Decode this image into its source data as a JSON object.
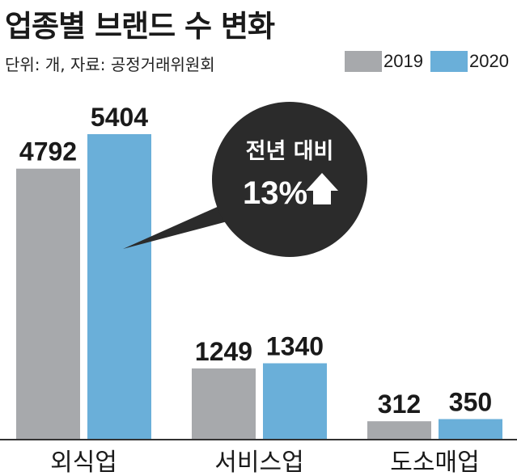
{
  "title": "업종별 브랜드 수 변화",
  "source": "단위: 개, 자료: 공정거래위원회",
  "colors": {
    "2019": "#a7a9ac",
    "2020": "#6aafd9",
    "callout": "#2b2b2b",
    "axis": "#333333"
  },
  "legend": [
    "2019",
    "2020"
  ],
  "callout": {
    "line1": "전년 대비",
    "line2": "13%",
    "icon": "up-arrow-icon"
  },
  "chart_data": {
    "type": "bar",
    "title": "업종별 브랜드 수 변화",
    "categories": [
      "외식업",
      "서비스업",
      "도소매업"
    ],
    "series": [
      {
        "name": "2019",
        "values": [
          4792,
          1249,
          312
        ]
      },
      {
        "name": "2020",
        "values": [
          5404,
          1340,
          350
        ]
      }
    ],
    "ylim": [
      0,
      5404
    ],
    "grid": false,
    "legend_position": "top-right",
    "annotation": "전년 대비 13%"
  }
}
